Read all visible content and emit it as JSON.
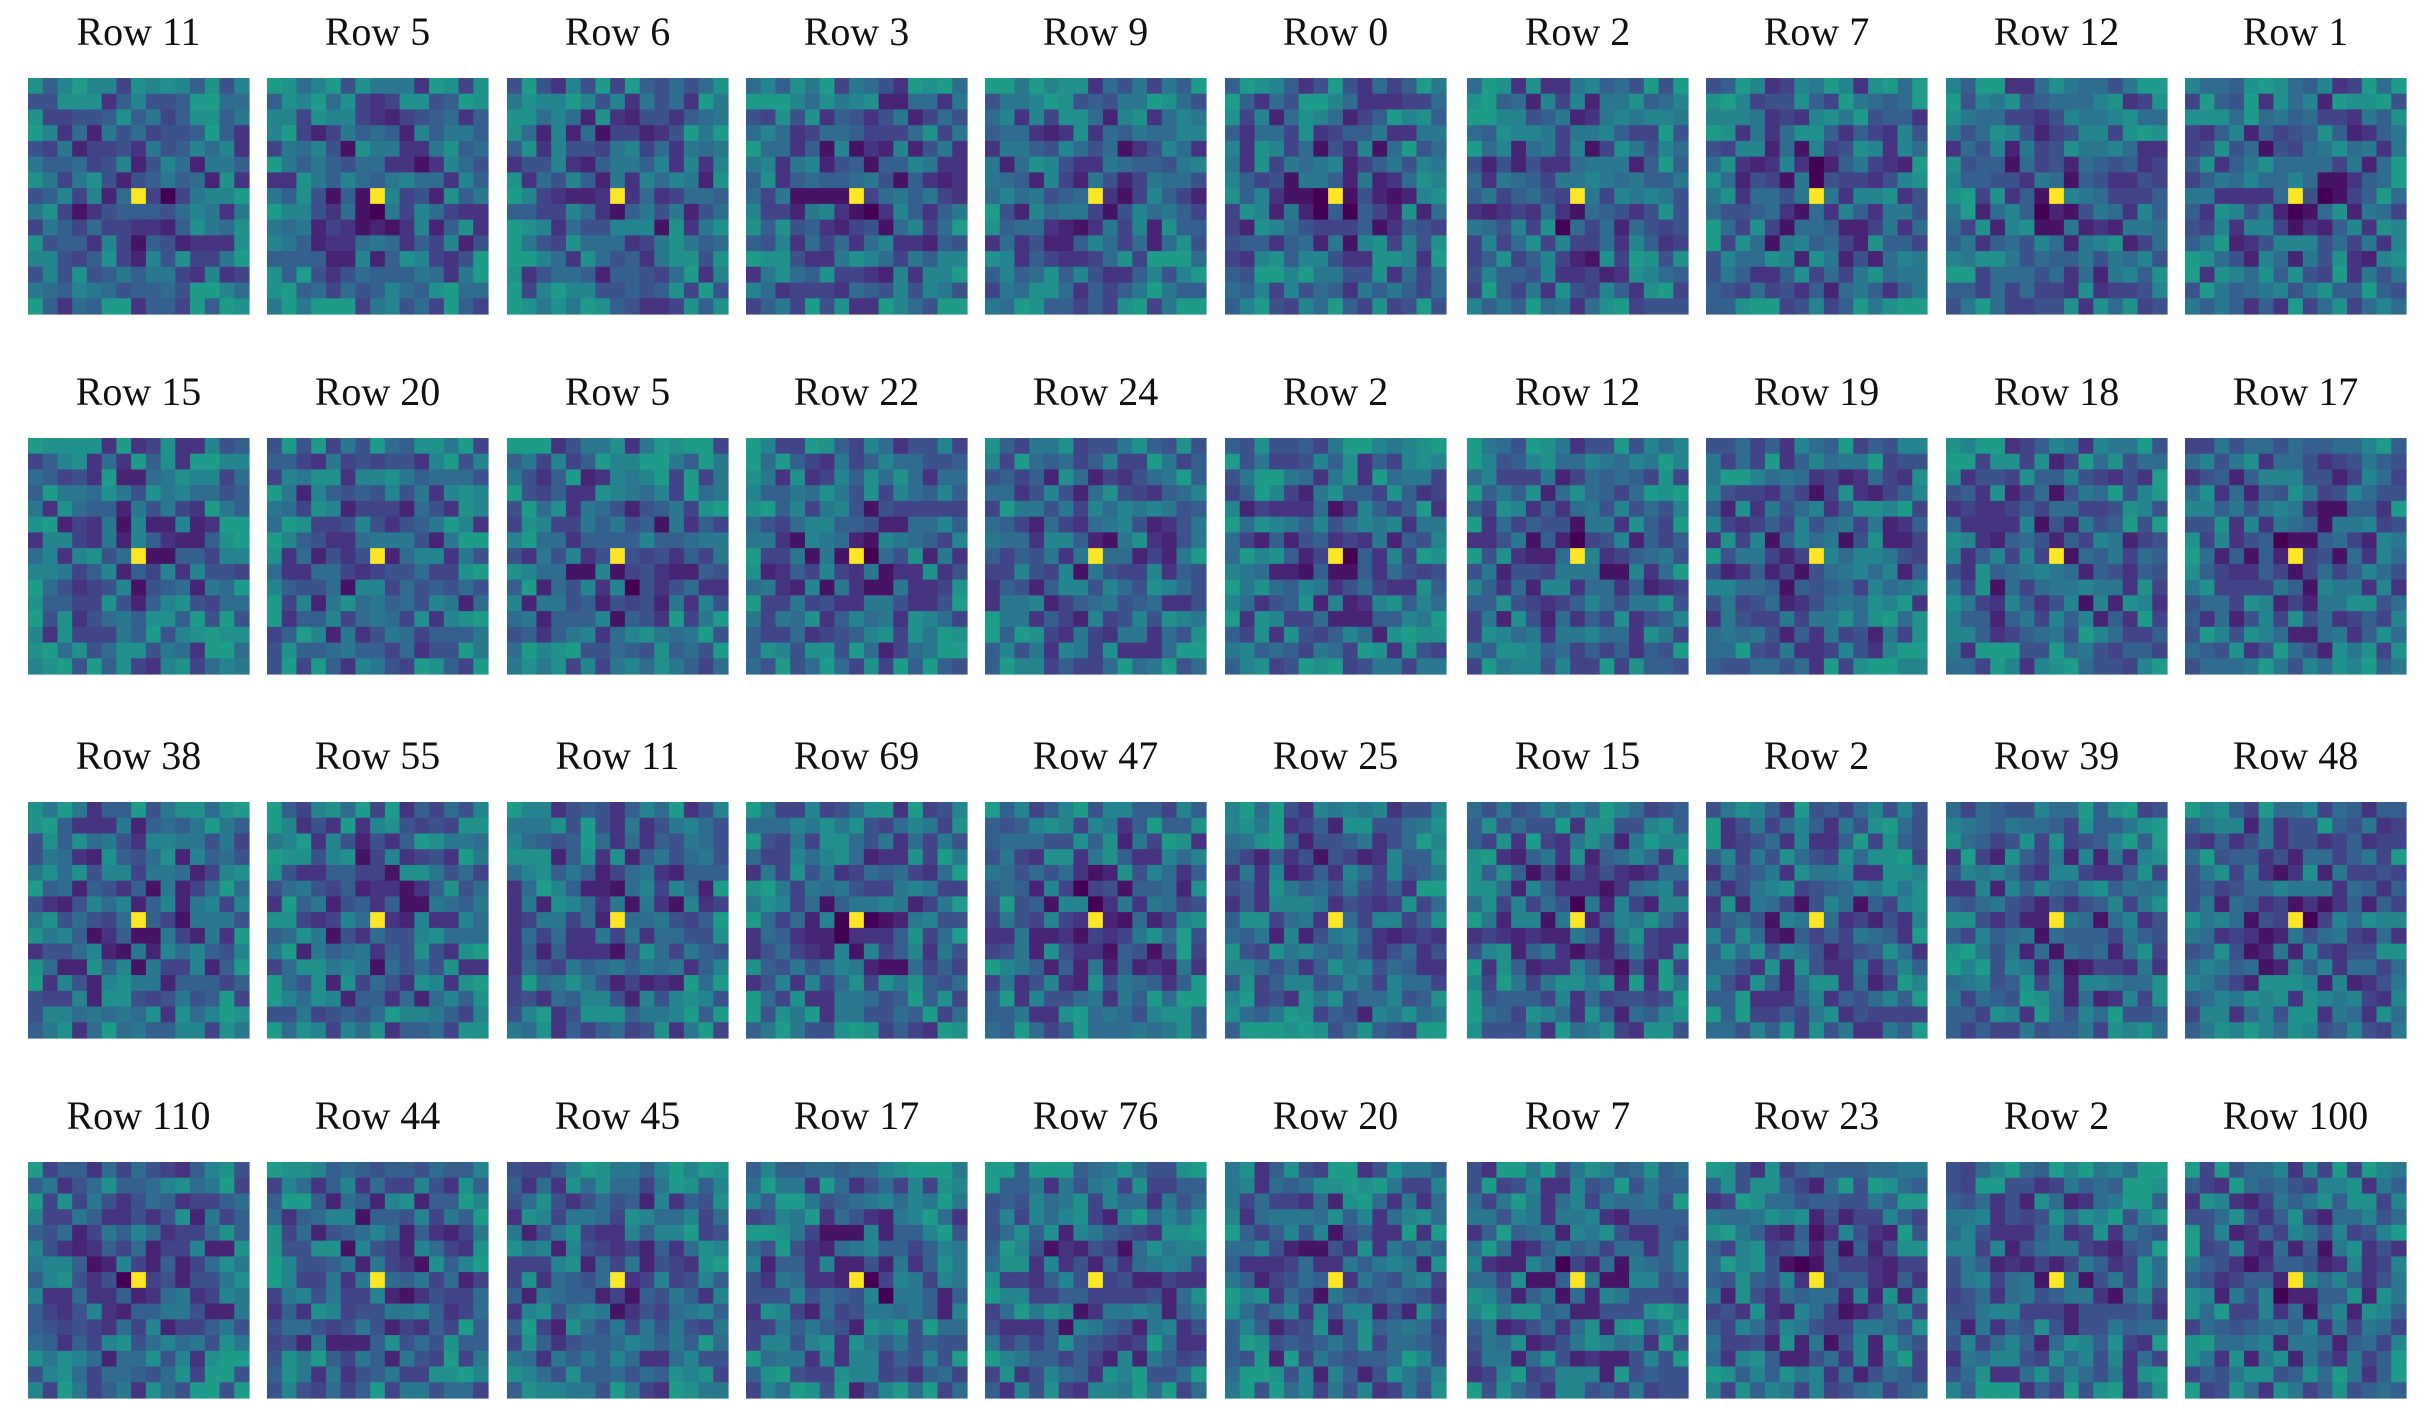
{
  "panels": [
    "Row 11",
    "Row 5",
    "Row 6",
    "Row 3",
    "Row 9",
    "Row 0",
    "Row 2",
    "Row 7",
    "Row 12",
    "Row 1",
    "Row 15",
    "Row 20",
    "Row 5",
    "Row 22",
    "Row 24",
    "Row 2",
    "Row 12",
    "Row 19",
    "Row 18",
    "Row 17",
    "Row 38",
    "Row 55",
    "Row 11",
    "Row 69",
    "Row 47",
    "Row 25",
    "Row 15",
    "Row 2",
    "Row 39",
    "Row 48",
    "Row 110",
    "Row 44",
    "Row 45",
    "Row 17",
    "Row 76",
    "Row 20",
    "Row 7",
    "Row 23",
    "Row 2",
    "Row 100"
  ]
}
